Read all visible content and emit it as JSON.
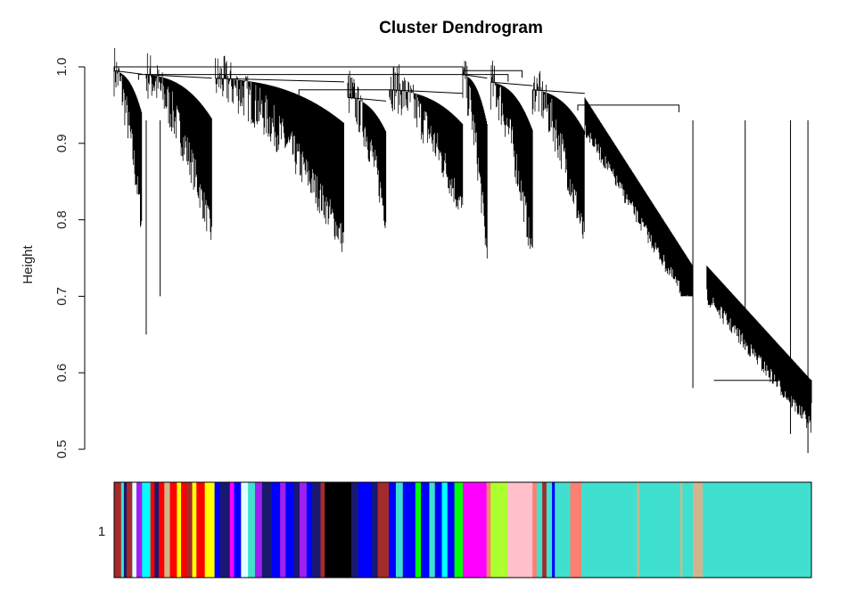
{
  "chart_data": {
    "type": "dendrogram",
    "title": "Cluster Dendrogram",
    "xlabel": "",
    "ylabel": "Height",
    "ylim": [
      0.5,
      1.0
    ],
    "yticks": [
      "0.5",
      "0.6",
      "0.7",
      "0.8",
      "0.9",
      "1.0"
    ],
    "colorbar_label": "1",
    "top_merges": [
      {
        "x_from": 0.0,
        "x_to": 0.5,
        "height": 1.0
      },
      {
        "x_from": 0.5,
        "x_to": 0.585,
        "height": 0.995
      },
      {
        "x_from": 0.035,
        "x_to": 0.565,
        "height": 0.99
      },
      {
        "x_from": 0.265,
        "x_to": 0.395,
        "height": 0.97
      },
      {
        "x_from": 0.665,
        "x_to": 0.81,
        "height": 0.95
      }
    ],
    "branches": [
      {
        "x_start": 0.0,
        "x_end": 0.04,
        "top": 0.995,
        "deep_min": 0.77
      },
      {
        "x_start": 0.045,
        "x_end": 0.14,
        "top": 0.99,
        "deep_min": 0.76
      },
      {
        "x_start": 0.145,
        "x_end": 0.33,
        "top": 0.985,
        "deep_min": 0.75
      },
      {
        "x_start": 0.335,
        "x_end": 0.39,
        "top": 0.96,
        "deep_min": 0.78
      },
      {
        "x_start": 0.395,
        "x_end": 0.5,
        "top": 0.97,
        "deep_min": 0.79
      },
      {
        "x_start": 0.5,
        "x_end": 0.535,
        "top": 0.99,
        "deep_min": 0.73
      },
      {
        "x_start": 0.54,
        "x_end": 0.6,
        "top": 0.98,
        "deep_min": 0.73
      },
      {
        "x_start": 0.6,
        "x_end": 0.675,
        "top": 0.97,
        "deep_min": 0.75
      }
    ],
    "decline": [
      {
        "x_start": 0.675,
        "x_end": 0.83,
        "top_start": 0.96,
        "top_end": 0.74,
        "bottom_end": 0.7
      },
      {
        "x_start": 0.85,
        "x_end": 1.0,
        "top_start": 0.74,
        "top_end": 0.59,
        "bottom_end": 0.5
      }
    ],
    "spikes": [
      {
        "x": 0.046,
        "height": 0.65
      },
      {
        "x": 0.066,
        "height": 0.7
      },
      {
        "x": 0.83,
        "height": 0.58
      },
      {
        "x": 0.905,
        "height": 0.63
      },
      {
        "x": 0.97,
        "height": 0.52
      },
      {
        "x": 0.995,
        "height": 0.495
      }
    ],
    "module_colors": {
      "turquoise": "#40e0d0",
      "blue": "#0000ff",
      "brown": "#a52a2a",
      "yellow": "#ffff00",
      "green": "#00ff00",
      "red": "#ff0000",
      "black": "#000000",
      "pink": "#ffc0cb",
      "magenta": "#ff00ff",
      "purple": "#a020f0",
      "greenyellow": "#adff2f",
      "tan": "#d2b48c",
      "salmon": "#fa8072",
      "cyan": "#00ffff",
      "midnightblue": "#191970",
      "lightcyan": "#e0ffff",
      "grey": "#bebebe"
    },
    "color_blocks": [
      {
        "start": 0.0,
        "end": 0.01,
        "color": "brown"
      },
      {
        "start": 0.01,
        "end": 0.014,
        "color": "turquoise"
      },
      {
        "start": 0.014,
        "end": 0.018,
        "color": "midnightblue"
      },
      {
        "start": 0.018,
        "end": 0.026,
        "color": "brown"
      },
      {
        "start": 0.026,
        "end": 0.032,
        "color": "lightcyan"
      },
      {
        "start": 0.032,
        "end": 0.04,
        "color": "purple"
      },
      {
        "start": 0.04,
        "end": 0.052,
        "color": "cyan"
      },
      {
        "start": 0.052,
        "end": 0.058,
        "color": "red"
      },
      {
        "start": 0.058,
        "end": 0.064,
        "color": "midnightblue"
      },
      {
        "start": 0.064,
        "end": 0.072,
        "color": "red"
      },
      {
        "start": 0.072,
        "end": 0.08,
        "color": "tan"
      },
      {
        "start": 0.08,
        "end": 0.09,
        "color": "red"
      },
      {
        "start": 0.09,
        "end": 0.096,
        "color": "yellow"
      },
      {
        "start": 0.096,
        "end": 0.104,
        "color": "red"
      },
      {
        "start": 0.104,
        "end": 0.112,
        "color": "brown"
      },
      {
        "start": 0.112,
        "end": 0.118,
        "color": "yellow"
      },
      {
        "start": 0.118,
        "end": 0.13,
        "color": "red"
      },
      {
        "start": 0.13,
        "end": 0.144,
        "color": "yellow"
      },
      {
        "start": 0.144,
        "end": 0.152,
        "color": "blue"
      },
      {
        "start": 0.152,
        "end": 0.166,
        "color": "midnightblue"
      },
      {
        "start": 0.166,
        "end": 0.172,
        "color": "magenta"
      },
      {
        "start": 0.172,
        "end": 0.182,
        "color": "blue"
      },
      {
        "start": 0.182,
        "end": 0.192,
        "color": "lightcyan"
      },
      {
        "start": 0.192,
        "end": 0.202,
        "color": "turquoise"
      },
      {
        "start": 0.202,
        "end": 0.212,
        "color": "purple"
      },
      {
        "start": 0.212,
        "end": 0.226,
        "color": "midnightblue"
      },
      {
        "start": 0.226,
        "end": 0.238,
        "color": "blue"
      },
      {
        "start": 0.238,
        "end": 0.246,
        "color": "purple"
      },
      {
        "start": 0.246,
        "end": 0.258,
        "color": "blue"
      },
      {
        "start": 0.258,
        "end": 0.266,
        "color": "midnightblue"
      },
      {
        "start": 0.266,
        "end": 0.276,
        "color": "purple"
      },
      {
        "start": 0.276,
        "end": 0.284,
        "color": "blue"
      },
      {
        "start": 0.284,
        "end": 0.296,
        "color": "midnightblue"
      },
      {
        "start": 0.296,
        "end": 0.302,
        "color": "brown"
      },
      {
        "start": 0.302,
        "end": 0.34,
        "color": "black"
      },
      {
        "start": 0.34,
        "end": 0.35,
        "color": "midnightblue"
      },
      {
        "start": 0.35,
        "end": 0.37,
        "color": "blue"
      },
      {
        "start": 0.37,
        "end": 0.378,
        "color": "midnightblue"
      },
      {
        "start": 0.378,
        "end": 0.394,
        "color": "brown"
      },
      {
        "start": 0.394,
        "end": 0.404,
        "color": "blue"
      },
      {
        "start": 0.404,
        "end": 0.414,
        "color": "turquoise"
      },
      {
        "start": 0.414,
        "end": 0.432,
        "color": "blue"
      },
      {
        "start": 0.432,
        "end": 0.44,
        "color": "green"
      },
      {
        "start": 0.44,
        "end": 0.452,
        "color": "blue"
      },
      {
        "start": 0.452,
        "end": 0.46,
        "color": "turquoise"
      },
      {
        "start": 0.46,
        "end": 0.47,
        "color": "blue"
      },
      {
        "start": 0.47,
        "end": 0.478,
        "color": "cyan"
      },
      {
        "start": 0.478,
        "end": 0.488,
        "color": "blue"
      },
      {
        "start": 0.488,
        "end": 0.5,
        "color": "green"
      },
      {
        "start": 0.5,
        "end": 0.534,
        "color": "magenta"
      },
      {
        "start": 0.534,
        "end": 0.54,
        "color": "salmon"
      },
      {
        "start": 0.54,
        "end": 0.564,
        "color": "greenyellow"
      },
      {
        "start": 0.564,
        "end": 0.6,
        "color": "pink"
      },
      {
        "start": 0.6,
        "end": 0.606,
        "color": "salmon"
      },
      {
        "start": 0.606,
        "end": 0.614,
        "color": "turquoise"
      },
      {
        "start": 0.614,
        "end": 0.62,
        "color": "brown"
      },
      {
        "start": 0.62,
        "end": 0.628,
        "color": "turquoise"
      },
      {
        "start": 0.628,
        "end": 0.632,
        "color": "blue"
      },
      {
        "start": 0.632,
        "end": 0.654,
        "color": "turquoise"
      },
      {
        "start": 0.654,
        "end": 0.67,
        "color": "salmon"
      },
      {
        "start": 0.67,
        "end": 0.75,
        "color": "turquoise"
      },
      {
        "start": 0.75,
        "end": 0.753,
        "color": "tan"
      },
      {
        "start": 0.753,
        "end": 0.812,
        "color": "turquoise"
      },
      {
        "start": 0.812,
        "end": 0.815,
        "color": "tan"
      },
      {
        "start": 0.815,
        "end": 0.83,
        "color": "turquoise"
      },
      {
        "start": 0.83,
        "end": 0.844,
        "color": "tan"
      },
      {
        "start": 0.844,
        "end": 1.0,
        "color": "turquoise"
      }
    ]
  }
}
